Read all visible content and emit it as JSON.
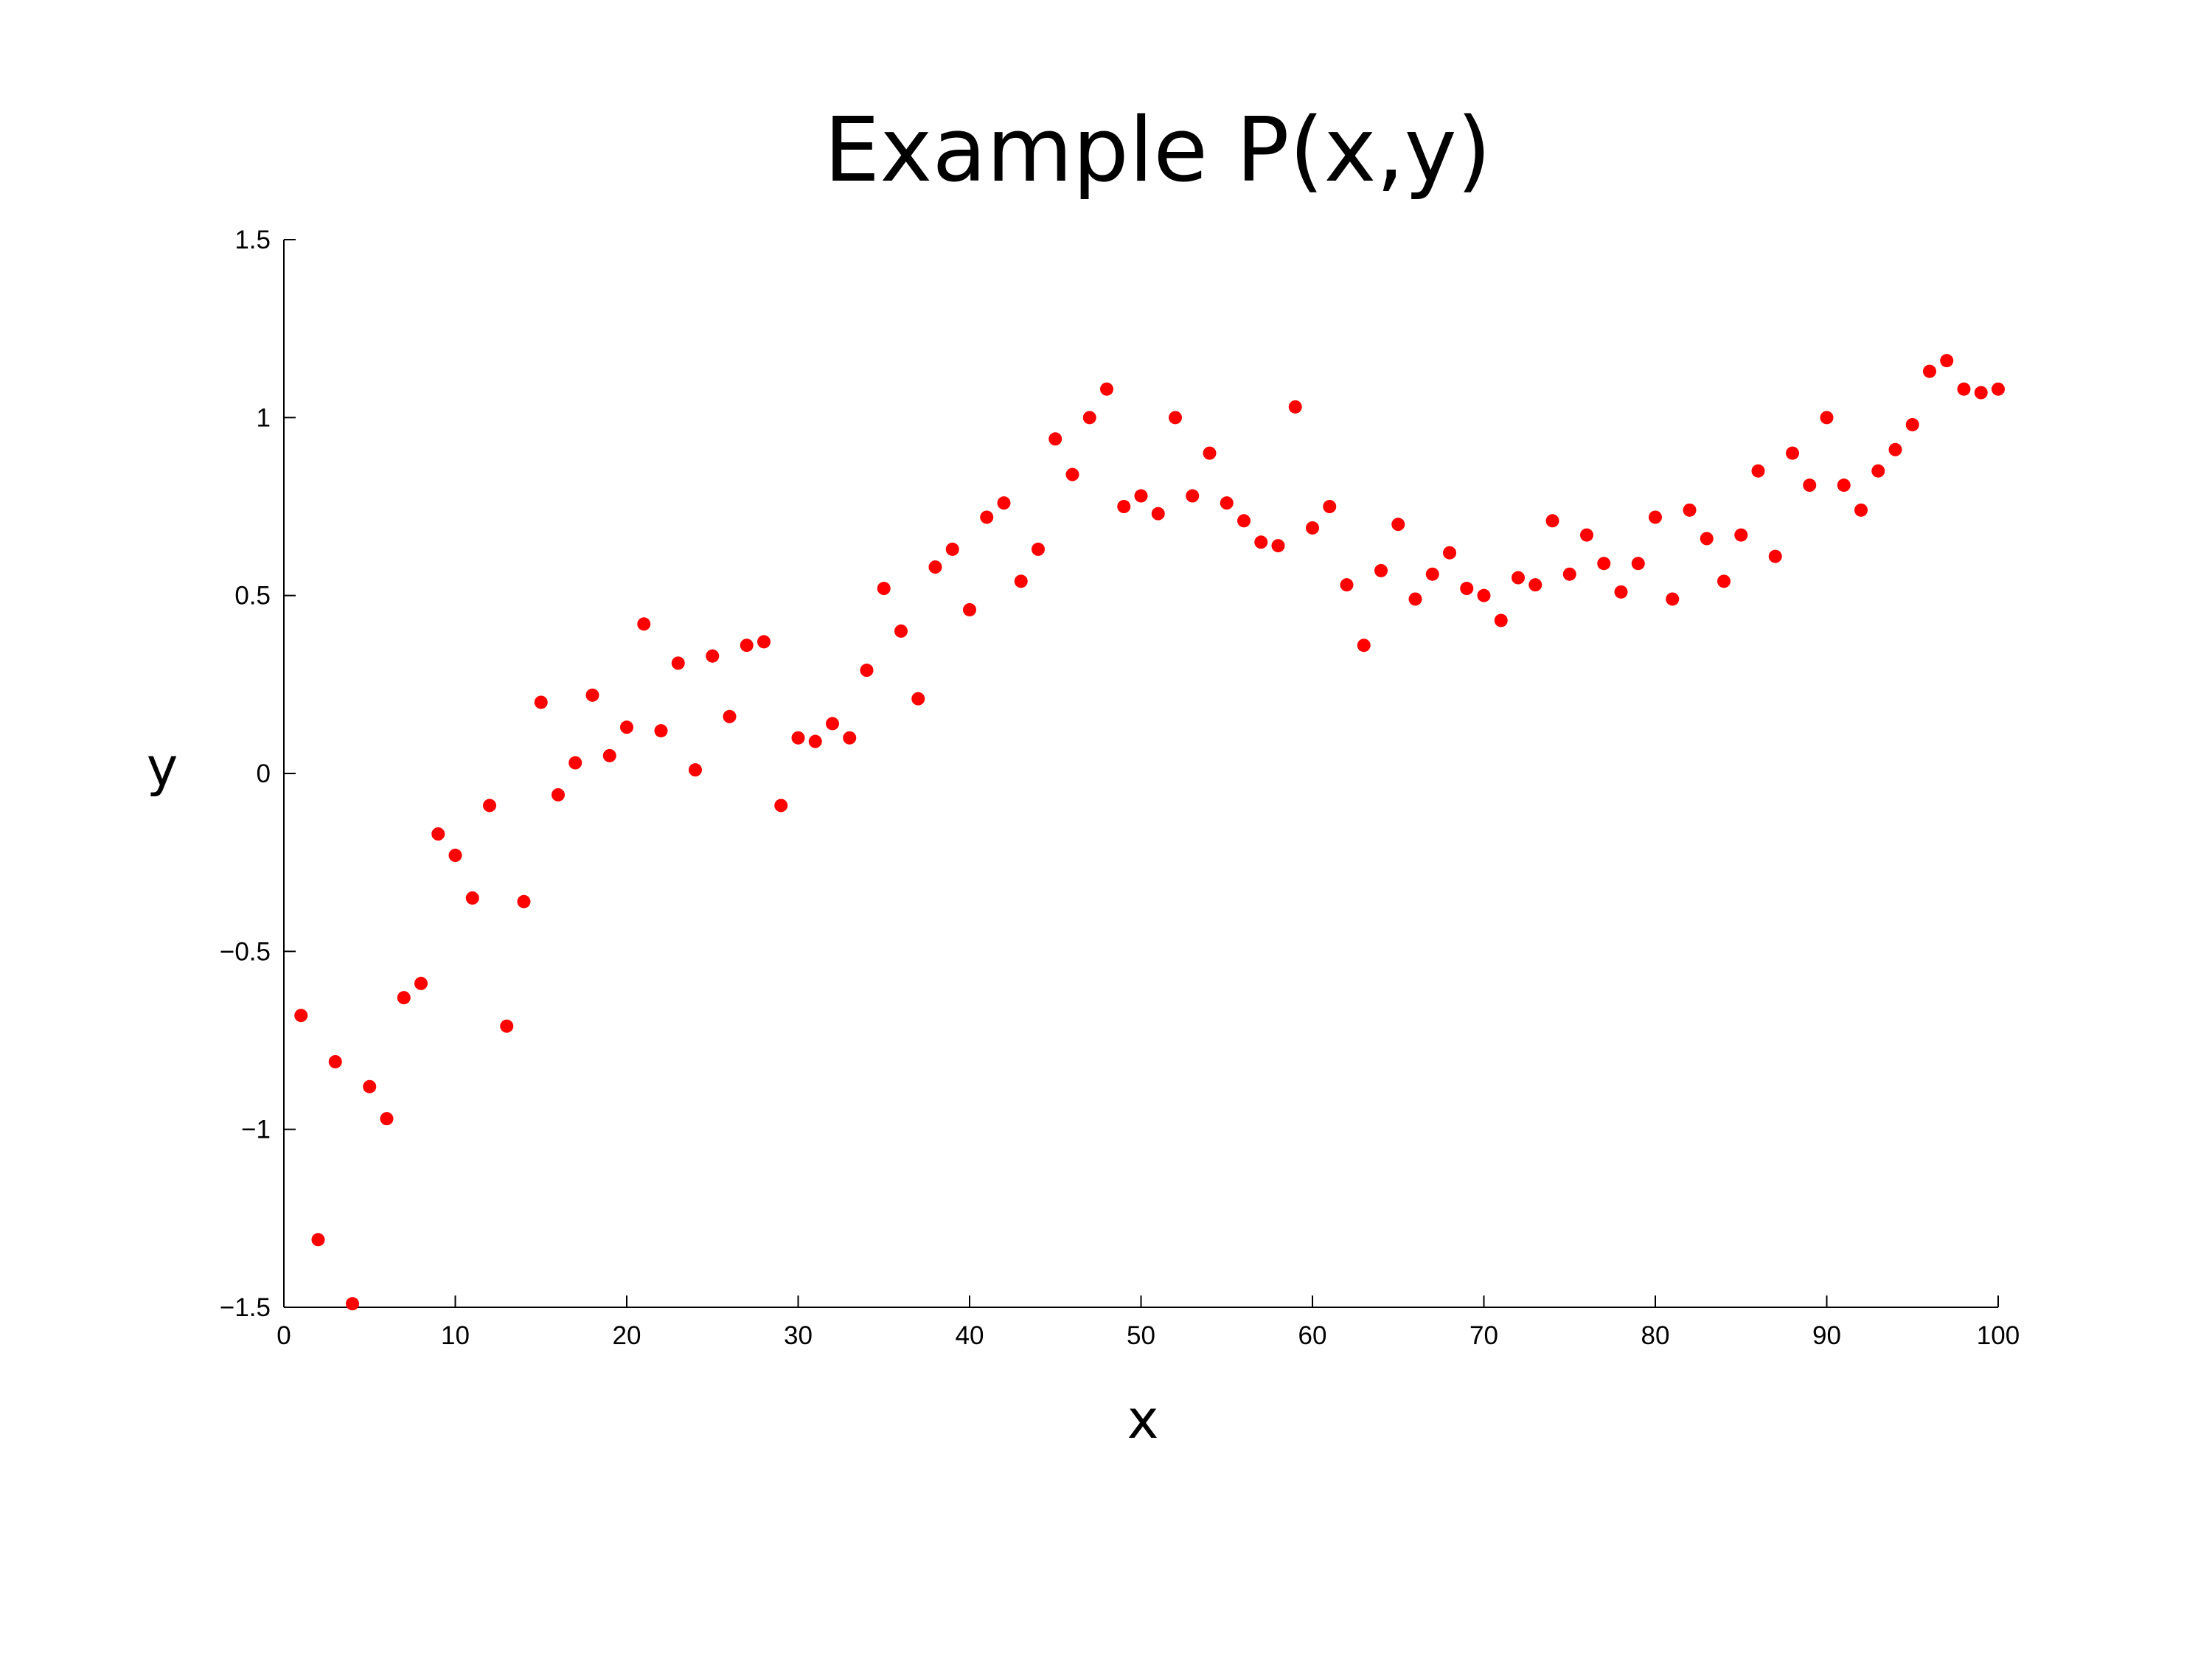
{
  "chart_data": {
    "type": "scatter",
    "title": "Example P(x,y)",
    "xlabel": "x",
    "ylabel": "y",
    "xlim": [
      0,
      100
    ],
    "ylim": [
      -1.5,
      1.5
    ],
    "xticks": [
      0,
      10,
      20,
      30,
      40,
      50,
      60,
      70,
      80,
      90,
      100
    ],
    "xtick_labels": [
      "0",
      "10",
      "20",
      "30",
      "40",
      "50",
      "60",
      "70",
      "80",
      "90",
      "100"
    ],
    "yticks": [
      -1.5,
      -1,
      -0.5,
      0,
      0.5,
      1,
      1.5
    ],
    "ytick_labels": [
      "−1.5",
      "−1",
      "−0.5",
      "0",
      "0.5",
      "1",
      "1.5"
    ],
    "grid": false,
    "marker_color": "#ff0000",
    "series": [
      {
        "x": [
          1,
          2,
          3,
          4,
          5,
          6,
          7,
          8,
          9,
          10,
          11,
          12,
          13,
          14,
          15,
          16,
          17,
          18,
          19,
          20,
          21,
          22,
          23,
          24,
          25,
          26,
          27,
          28,
          29,
          30,
          31,
          32,
          33,
          34,
          35,
          36,
          37,
          38,
          39,
          40,
          41,
          42,
          43,
          44,
          45,
          46,
          47,
          48,
          49,
          50,
          51,
          52,
          53,
          54,
          55,
          56,
          57,
          58,
          59,
          60,
          61,
          62,
          63,
          64,
          65,
          66,
          67,
          68,
          69,
          70,
          71,
          72,
          73,
          74,
          75,
          76,
          77,
          78,
          79,
          80,
          81,
          82,
          83,
          84,
          85,
          86,
          87,
          88,
          89,
          90,
          91,
          92,
          93,
          94,
          95,
          96,
          97,
          98,
          99,
          100
        ],
        "y": [
          -0.68,
          -1.31,
          -0.81,
          -1.49,
          -0.88,
          -0.97,
          -0.63,
          -0.59,
          -0.17,
          -0.23,
          -0.35,
          -0.09,
          -0.71,
          -0.36,
          0.2,
          -0.06,
          0.03,
          0.22,
          0.05,
          0.13,
          0.42,
          0.12,
          0.31,
          0.01,
          0.33,
          0.16,
          0.36,
          0.37,
          -0.09,
          0.1,
          0.09,
          0.14,
          0.1,
          0.29,
          0.52,
          0.4,
          0.21,
          0.58,
          0.63,
          0.46,
          0.72,
          0.76,
          0.54,
          0.63,
          0.94,
          0.84,
          1.0,
          1.08,
          0.75,
          0.78,
          0.73,
          1.0,
          0.78,
          0.9,
          0.76,
          0.71,
          0.65,
          0.64,
          1.03,
          0.69,
          0.75,
          0.53,
          0.36,
          0.57,
          0.7,
          0.49,
          0.56,
          0.62,
          0.52,
          0.5,
          0.43,
          0.55,
          0.53,
          0.71,
          0.56,
          0.67,
          0.59,
          0.51,
          0.59,
          0.72,
          0.49,
          0.74,
          0.66,
          0.54,
          0.67,
          0.85,
          0.61,
          0.9,
          0.81,
          1.0,
          0.81,
          0.74,
          0.85,
          0.91,
          0.98,
          1.13,
          1.16,
          1.08,
          1.07,
          1.08
        ]
      }
    ]
  }
}
